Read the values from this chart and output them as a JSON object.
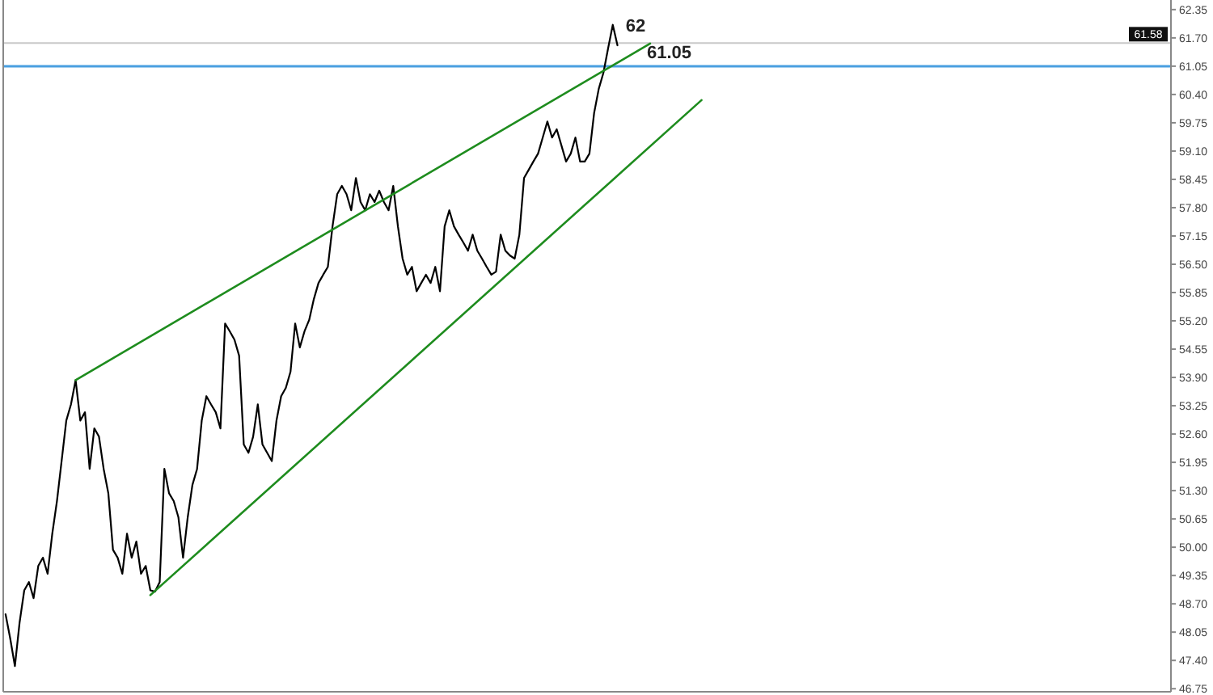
{
  "chart_data": {
    "type": "line",
    "categories": [
      null,
      null,
      null,
      null,
      null,
      null,
      null,
      null,
      null,
      null,
      null,
      null,
      null,
      null,
      null,
      null,
      null,
      null,
      null,
      null,
      null,
      null,
      null,
      null,
      null,
      null,
      null,
      null,
      null,
      null,
      null,
      null,
      null,
      null,
      null,
      null,
      null,
      null,
      null,
      null,
      null,
      null,
      null,
      null,
      null,
      null,
      null,
      null,
      null,
      null,
      null,
      null,
      null,
      null,
      null,
      null,
      null,
      null,
      null,
      null,
      null,
      null,
      null,
      null,
      null,
      null,
      null,
      null,
      null,
      null,
      null,
      null,
      null,
      null,
      null,
      null,
      null,
      null,
      null,
      null,
      null,
      null,
      null,
      null,
      null,
      null,
      null,
      null,
      null,
      null,
      null,
      null,
      null,
      null,
      null,
      null,
      null,
      null,
      null,
      null,
      null,
      null,
      null,
      null,
      null,
      null,
      null,
      null,
      null,
      null,
      null,
      null,
      null,
      null,
      null,
      null,
      null,
      null,
      null,
      null,
      null,
      null,
      null,
      null,
      null,
      null,
      null,
      null,
      null,
      null,
      null,
      null,
      null,
      null,
      null,
      null,
      null,
      null,
      null,
      null,
      null,
      null,
      null,
      null,
      null,
      null,
      null,
      null,
      null,
      null,
      null,
      null,
      null,
      null,
      null,
      null,
      null,
      null,
      null,
      null,
      null,
      null,
      null,
      null,
      null,
      null,
      null,
      null,
      null,
      null,
      null,
      null,
      null,
      null,
      null,
      null,
      null,
      null,
      null,
      null,
      null,
      null,
      null,
      null,
      null,
      null,
      null,
      null,
      null,
      null,
      null,
      null,
      null,
      null,
      null,
      null,
      null,
      null,
      null,
      null,
      null,
      null,
      null,
      null,
      null,
      null,
      null,
      null,
      null,
      null,
      null,
      null,
      null,
      null,
      null,
      null,
      null,
      null,
      null,
      null,
      null,
      null,
      null,
      null,
      null,
      null,
      null,
      null,
      null,
      null,
      null,
      null,
      null,
      null,
      null,
      null,
      null,
      null,
      null,
      null,
      null,
      null,
      null,
      null,
      null,
      null,
      null,
      null,
      null,
      null
    ],
    "series": [
      {
        "color": "#000000",
        "values": [
          48.46,
          47.9,
          47.27,
          48.27,
          49.01,
          49.2,
          48.83,
          49.57,
          49.76,
          49.39,
          50.31,
          51.06,
          51.98,
          52.91,
          53.28,
          53.84,
          52.91,
          53.1,
          51.8,
          52.73,
          52.54,
          51.8,
          51.24,
          49.94,
          49.76,
          49.39,
          50.31,
          49.76,
          50.13,
          49.39,
          49.57,
          49.01,
          48.98,
          49.2,
          51.8,
          51.24,
          51.06,
          50.69,
          49.76,
          50.69,
          51.43,
          51.8,
          52.91,
          53.47,
          53.28,
          53.1,
          52.73,
          55.14,
          54.96,
          54.77,
          54.4,
          52.36,
          52.17,
          52.54,
          53.28,
          52.36,
          52.17,
          51.98,
          52.91,
          53.47,
          53.66,
          54.03,
          55.14,
          54.59,
          54.96,
          55.22,
          55.7,
          56.07,
          56.26,
          56.44,
          57.37,
          58.11,
          58.3,
          58.11,
          57.74,
          58.48,
          57.93,
          57.74,
          58.11,
          57.93,
          58.19,
          57.93,
          57.74,
          58.3,
          57.37,
          56.63,
          56.26,
          56.44,
          55.88,
          56.07,
          56.26,
          56.07,
          56.44,
          55.88,
          57.37,
          57.74,
          57.37,
          57.18,
          57.0,
          56.81,
          57.18,
          56.81,
          56.63,
          56.44,
          56.26,
          56.33,
          57.18,
          56.81,
          56.7,
          56.63,
          57.18,
          58.48,
          58.67,
          58.86,
          59.04,
          59.41,
          59.78,
          59.41,
          59.6,
          59.23,
          58.86,
          59.04,
          59.41,
          58.86,
          58.86,
          59.04,
          59.97,
          60.53,
          60.9,
          61.46,
          62.0,
          61.53,
          null,
          null,
          null,
          null,
          null,
          null,
          null,
          null,
          null,
          null,
          null,
          null,
          null,
          null,
          null,
          null,
          null,
          null,
          null,
          null,
          null,
          null,
          null,
          null,
          null,
          null,
          null,
          null,
          null,
          null,
          null,
          null,
          null,
          null,
          null,
          null,
          null,
          null,
          null,
          null,
          null,
          null,
          null,
          null,
          null,
          null,
          null,
          null,
          null,
          null,
          null,
          null,
          null,
          null,
          null,
          null,
          null,
          null,
          null,
          null,
          null,
          null,
          null,
          null,
          null,
          null,
          null,
          null,
          null,
          null,
          null,
          null,
          null,
          null,
          null,
          null,
          null,
          null,
          null,
          null,
          null,
          null,
          null,
          null,
          null,
          null,
          null,
          null,
          null,
          null,
          null,
          null,
          null,
          null,
          null,
          null,
          null,
          null,
          null,
          null,
          null,
          null,
          null,
          null,
          null,
          null,
          null,
          null,
          null,
          null,
          null,
          null,
          null,
          null,
          null,
          null,
          null,
          null
        ]
      },
      {
        "color": "#1e8c1e",
        "values": [
          null,
          null,
          null,
          null,
          null,
          null,
          null,
          null,
          null,
          null,
          null,
          null,
          null,
          null,
          null,
          53.84,
          null,
          null,
          null,
          null,
          null,
          null,
          null,
          null,
          null,
          null,
          null,
          null,
          null,
          null,
          null,
          null,
          null,
          null,
          null,
          null,
          null,
          null,
          null,
          null,
          null,
          null,
          null,
          null,
          null,
          null,
          null,
          null,
          null,
          null,
          null,
          null,
          null,
          null,
          null,
          null,
          null,
          null,
          null,
          null,
          null,
          null,
          null,
          null,
          null,
          null,
          null,
          null,
          null,
          null,
          null,
          null,
          null,
          null,
          null,
          null,
          null,
          null,
          null,
          null,
          null,
          null,
          null,
          null,
          null,
          null,
          null,
          null,
          null,
          null,
          null,
          null,
          null,
          null,
          null,
          null,
          null,
          null,
          null,
          null,
          null,
          null,
          null,
          null,
          null,
          null,
          null,
          null,
          null,
          null,
          null,
          null,
          null,
          null,
          null,
          null,
          null,
          null,
          null,
          null,
          null,
          null,
          null,
          null,
          null,
          null,
          null,
          null,
          null,
          null,
          null,
          null,
          null,
          null,
          null,
          null,
          null,
          null,
          61.57,
          null,
          null,
          null,
          null,
          null,
          null,
          null,
          null,
          null,
          null,
          null,
          null,
          null,
          null,
          null,
          null,
          null,
          null,
          null,
          null,
          null,
          null,
          null,
          null,
          null,
          null,
          null,
          null,
          null,
          null,
          null,
          null,
          null,
          null,
          null,
          null,
          null,
          null,
          null,
          null,
          null,
          null,
          null,
          null,
          null,
          null,
          null,
          null,
          null,
          null,
          null,
          null,
          null,
          null,
          null,
          null,
          null,
          null,
          null,
          null,
          null,
          null,
          null,
          null,
          null,
          null,
          null,
          null,
          null,
          null,
          null,
          null,
          null,
          null,
          null,
          null,
          null,
          null,
          null,
          null,
          null,
          null,
          null,
          null,
          null,
          null,
          null,
          null,
          null,
          null,
          null,
          null,
          null,
          null,
          null,
          null,
          null,
          null,
          null,
          null,
          null,
          null,
          null,
          null,
          null,
          null,
          null,
          null,
          null,
          null,
          null
        ]
      },
      {
        "color": "#1e8c1e",
        "values": [
          null,
          null,
          null,
          null,
          null,
          null,
          null,
          null,
          null,
          null,
          null,
          null,
          null,
          null,
          null,
          null,
          null,
          null,
          null,
          null,
          null,
          null,
          null,
          null,
          null,
          null,
          null,
          null,
          null,
          null,
          null,
          48.9,
          null,
          null,
          null,
          null,
          null,
          null,
          null,
          null,
          null,
          null,
          null,
          null,
          null,
          null,
          null,
          null,
          null,
          null,
          null,
          null,
          null,
          null,
          null,
          null,
          null,
          null,
          null,
          null,
          null,
          null,
          null,
          null,
          null,
          null,
          null,
          null,
          null,
          null,
          null,
          null,
          null,
          null,
          null,
          null,
          null,
          null,
          null,
          null,
          null,
          null,
          null,
          null,
          null,
          null,
          null,
          null,
          null,
          null,
          null,
          null,
          null,
          null,
          null,
          null,
          null,
          null,
          null,
          null,
          null,
          null,
          null,
          null,
          null,
          null,
          null,
          null,
          null,
          null,
          null,
          null,
          null,
          null,
          null,
          null,
          null,
          null,
          null,
          null,
          null,
          null,
          null,
          null,
          null,
          null,
          null,
          null,
          null,
          null,
          null,
          null,
          null,
          null,
          null,
          null,
          null,
          null,
          null,
          null,
          null,
          null,
          null,
          null,
          null,
          null,
          null,
          null,
          null,
          60.27,
          null,
          null,
          null,
          null,
          null,
          null,
          null,
          null,
          null,
          null,
          null,
          null,
          null,
          null,
          null,
          null,
          null,
          null,
          null,
          null,
          null,
          null,
          null,
          null,
          null,
          null,
          null,
          null,
          null,
          null,
          null,
          null,
          null,
          null,
          null,
          null,
          null,
          null,
          null,
          null,
          null,
          null,
          null,
          null,
          null,
          null,
          null,
          null,
          null,
          null,
          null,
          null,
          null,
          null,
          null,
          null,
          null,
          null,
          null,
          null,
          null,
          null,
          null,
          null,
          null,
          null,
          null,
          null,
          null,
          null,
          null,
          null,
          null,
          null,
          null,
          null,
          null,
          null,
          null,
          null,
          null,
          null,
          null,
          null,
          null,
          null,
          null,
          null,
          null,
          null,
          null,
          null,
          null,
          null,
          null,
          null,
          null,
          null,
          null,
          null
        ]
      }
    ],
    "ylim": [
      46.68,
      62.57
    ],
    "yticks": [
      {
        "value": 46.75,
        "label": "46.75"
      },
      {
        "value": 47.4,
        "label": "47.40"
      },
      {
        "value": 48.05,
        "label": "48.05"
      },
      {
        "value": 48.7,
        "label": "48.70"
      },
      {
        "value": 49.35,
        "label": "49.35"
      },
      {
        "value": 50,
        "label": "50.00"
      },
      {
        "value": 50.65,
        "label": "50.65"
      },
      {
        "value": 51.3,
        "label": "51.30"
      },
      {
        "value": 51.95,
        "label": "51.95"
      },
      {
        "value": 52.6,
        "label": "52.60"
      },
      {
        "value": 53.25,
        "label": "53.25"
      },
      {
        "value": 53.9,
        "label": "53.90"
      },
      {
        "value": 54.55,
        "label": "54.55"
      },
      {
        "value": 55.2,
        "label": "55.20"
      },
      {
        "value": 55.85,
        "label": "55.85"
      },
      {
        "value": 56.5,
        "label": "56.50"
      },
      {
        "value": 57.15,
        "label": "57.15"
      },
      {
        "value": 57.8,
        "label": "57.80"
      },
      {
        "value": 58.45,
        "label": "58.45"
      },
      {
        "value": 59.1,
        "label": "59.10"
      },
      {
        "value": 59.75,
        "label": "59.75"
      },
      {
        "value": 60.4,
        "label": "60.40"
      },
      {
        "value": 61.05,
        "label": "61.05"
      },
      {
        "value": 61.7,
        "label": "61.70"
      },
      {
        "value": 62.35,
        "label": "62.35"
      }
    ],
    "tick_labels": "y",
    "grid": false,
    "ref_lines": [
      {
        "axis": "y",
        "value": 61.05,
        "label": "61.05",
        "color": "#4a9fe0"
      },
      {
        "axis": "y",
        "value": 61.58,
        "label": "61.58",
        "color": "#c8c8c8"
      }
    ],
    "annotations": [
      "62"
    ]
  }
}
